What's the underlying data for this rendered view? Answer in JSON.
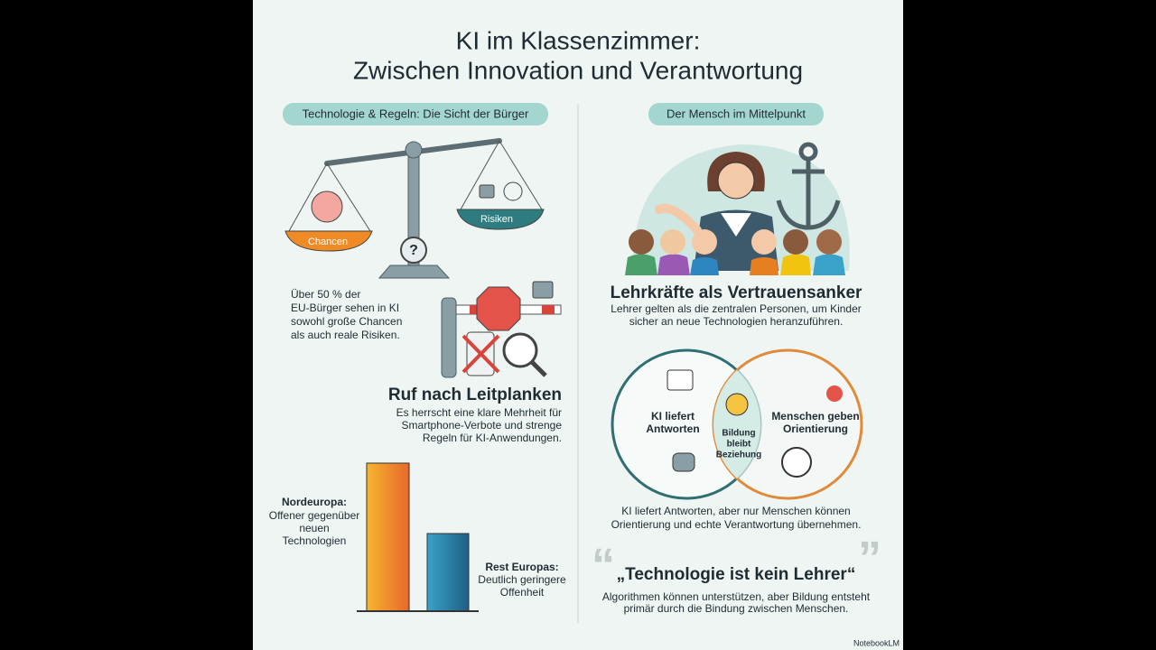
{
  "header": {
    "title_lines": [
      "KI im Klassenzimmer:",
      "Zwischen Innovation und Verantwortung"
    ]
  },
  "left": {
    "pill": "Technologie & Regeln: Die Sicht der Bürger",
    "scale": {
      "chancen": "Chancen",
      "risiken": "Risiken"
    },
    "stat_lines": [
      "Über 50 % der",
      "EU-Bürger sehen in KI",
      "sowohl große Chancen",
      "als auch reale Risiken."
    ],
    "guardrails": {
      "heading": "Ruf nach Leitplanken",
      "lines": [
        "Es herrscht eine klare Mehrheit für",
        "Smartphone-Verbote und strenge",
        "Regeln für KI-Anwendungen."
      ]
    },
    "nordeuropa": {
      "label": "Nordeuropa:",
      "lines": [
        "Offener gegenüber",
        "neuen",
        "Technologien"
      ]
    },
    "rest": {
      "label": "Rest Europas:",
      "lines": [
        "Deutlich geringere",
        "Offenheit"
      ]
    }
  },
  "right": {
    "pill": "Der Mensch im Mittelpunkt",
    "anchor": {
      "heading": "Lehrkräfte als Vertrauensanker",
      "lines": [
        "Lehrer gelten als die zentralen Personen, um Kinder",
        "sicher an neue Technologien heranzuführen."
      ]
    },
    "venn": {
      "left": [
        "KI liefert",
        "Antworten"
      ],
      "center": [
        "Bildung",
        "bleibt",
        "Beziehung"
      ],
      "right": [
        "Menschen geben",
        "Orientierung"
      ]
    },
    "venn_caption": [
      "KI liefert Antworten, aber nur Menschen können",
      "Orientierung und echte Verantwortung übernehmen."
    ],
    "quote": {
      "heading": "„Technologie ist kein Lehrer“",
      "lines": [
        "Algorithmen können unterstützen, aber Bildung entsteht",
        "primär durch die Bindung zwischen Menschen."
      ]
    }
  },
  "footer": "NotebookLM"
}
